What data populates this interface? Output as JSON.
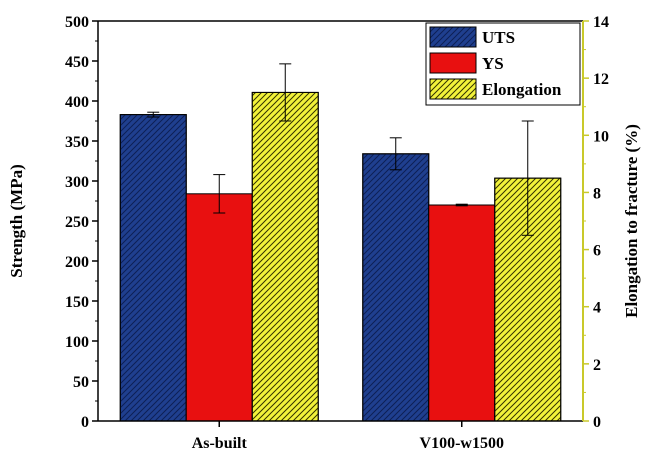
{
  "chart_data": {
    "type": "bar",
    "categories": [
      "As-built",
      "V100-w1500"
    ],
    "series": [
      {
        "name": "UTS",
        "axis": "left",
        "values": [
          383,
          334
        ],
        "errors": [
          3,
          20
        ],
        "color": "#1f3f8f",
        "hatch": true
      },
      {
        "name": "YS",
        "axis": "left",
        "values": [
          284,
          270
        ],
        "errors": [
          24,
          1
        ],
        "color": "#e81010",
        "hatch": false
      },
      {
        "name": "Elongation",
        "axis": "right",
        "values": [
          11.5,
          8.5
        ],
        "errors": [
          1.0,
          2.0
        ],
        "color": "#f2f23a",
        "hatch": true
      }
    ],
    "ylabel": "Strength (MPa)",
    "ylabel_right": "Elongation to fracture (%)",
    "ylim": [
      0,
      500
    ],
    "ylim_right": [
      0,
      14
    ],
    "yticks": [
      "0",
      "50",
      "100",
      "150",
      "200",
      "250",
      "300",
      "350",
      "400",
      "450",
      "500"
    ],
    "yticks_right": [
      "0",
      "2",
      "4",
      "6",
      "8",
      "10",
      "12",
      "14"
    ],
    "legend_position": "top-right"
  }
}
